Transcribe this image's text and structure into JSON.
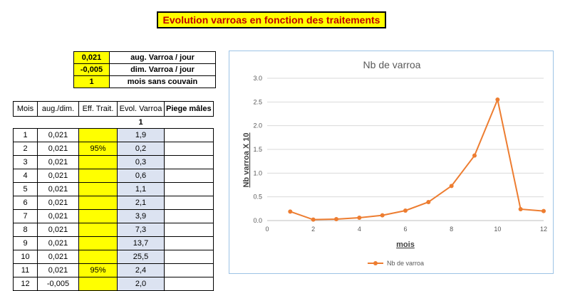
{
  "title": "Evolution varroas en fonction des traitements",
  "params": [
    {
      "value": "0,021",
      "label": "aug. Varroa / jour"
    },
    {
      "value": "-0,005",
      "label": "dim. Varroa / jour"
    },
    {
      "value": "1",
      "label": "mois sans couvain"
    }
  ],
  "table": {
    "headers": [
      "Mois",
      "aug./dim.",
      "Eff.  Trait.",
      "Evol. Varroa",
      "Piege mâles"
    ],
    "sub_value": "1",
    "rows": [
      {
        "mois": "1",
        "aug": "0,021",
        "eff": "",
        "evol": "1,9",
        "piege": ""
      },
      {
        "mois": "2",
        "aug": "0,021",
        "eff": "95%",
        "evol": "0,2",
        "piege": ""
      },
      {
        "mois": "3",
        "aug": "0,021",
        "eff": "",
        "evol": "0,3",
        "piege": ""
      },
      {
        "mois": "4",
        "aug": "0,021",
        "eff": "",
        "evol": "0,6",
        "piege": ""
      },
      {
        "mois": "5",
        "aug": "0,021",
        "eff": "",
        "evol": "1,1",
        "piege": ""
      },
      {
        "mois": "6",
        "aug": "0,021",
        "eff": "",
        "evol": "2,1",
        "piege": ""
      },
      {
        "mois": "7",
        "aug": "0,021",
        "eff": "",
        "evol": "3,9",
        "piege": ""
      },
      {
        "mois": "8",
        "aug": "0,021",
        "eff": "",
        "evol": "7,3",
        "piege": ""
      },
      {
        "mois": "9",
        "aug": "0,021",
        "eff": "",
        "evol": "13,7",
        "piege": ""
      },
      {
        "mois": "10",
        "aug": "0,021",
        "eff": "",
        "evol": "25,5",
        "piege": ""
      },
      {
        "mois": "11",
        "aug": "0,021",
        "eff": "95%",
        "evol": "2,4",
        "piege": ""
      },
      {
        "mois": "12",
        "aug": "-0,005",
        "eff": "",
        "evol": "2,0",
        "piege": ""
      }
    ]
  },
  "colors": {
    "highlight": "#ffff00",
    "evol_bg": "#dce3f1",
    "series": "#ed7d31",
    "title_text": "#c00000"
  },
  "chart_data": {
    "type": "line",
    "title": "Nb de varroa",
    "xlabel": "mois",
    "ylabel": "Nb varroa X 10",
    "xlim": [
      0,
      12
    ],
    "ylim": [
      0,
      3
    ],
    "xticks": [
      "0",
      "2",
      "4",
      "6",
      "8",
      "10",
      "12"
    ],
    "yticks": [
      "0.0",
      "0.5",
      "1.0",
      "1.5",
      "2.0",
      "2.5",
      "3.0"
    ],
    "legend": "bottom",
    "grid": true,
    "series": [
      {
        "name": "Nb de varroa",
        "x": [
          1,
          2,
          3,
          4,
          5,
          6,
          7,
          8,
          9,
          10,
          11,
          12
        ],
        "y": [
          0.19,
          0.02,
          0.03,
          0.06,
          0.11,
          0.21,
          0.39,
          0.73,
          1.37,
          2.55,
          0.24,
          0.2
        ]
      }
    ]
  }
}
